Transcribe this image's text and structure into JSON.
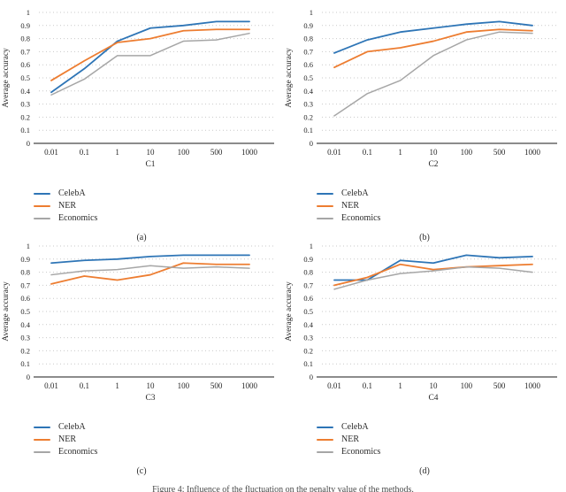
{
  "figure": {
    "caption": "Figure 4: Influence of the fluctuation on the penalty value of the methods."
  },
  "colors": {
    "celeba": "#2E75B6",
    "ner": "#ED7D31",
    "economics": "#A6A6A6",
    "axis": "#8C8C8C",
    "grid": "#C9C9C9",
    "text": "#262626"
  },
  "legend": {
    "entries": [
      "CelebA",
      "NER",
      "Economics"
    ]
  },
  "chart_data": [
    {
      "type": "line",
      "panel": "(a)",
      "xlabel": "C1",
      "ylabel": "Average accuracy",
      "ylim": [
        0,
        1
      ],
      "grid": "horizontal-dotted",
      "legend_position": "below-left",
      "categories": [
        "0.01",
        "0.1",
        "1",
        "10",
        "100",
        "500",
        "1000"
      ],
      "yticks": [
        "0",
        "0.1",
        "0.2",
        "0.3",
        "0.4",
        "0.5",
        "0.6",
        "0.7",
        "0.8",
        "0.9",
        "1"
      ],
      "series": [
        {
          "name": "CelebA",
          "color": "#2E75B6",
          "width": 1.8,
          "values": [
            0.39,
            0.57,
            0.78,
            0.88,
            0.9,
            0.93,
            0.93
          ]
        },
        {
          "name": "NER",
          "color": "#ED7D31",
          "width": 1.8,
          "values": [
            0.48,
            0.63,
            0.77,
            0.8,
            0.86,
            0.87,
            0.87
          ]
        },
        {
          "name": "Economics",
          "color": "#A6A6A6",
          "width": 1.5,
          "values": [
            0.37,
            0.49,
            0.67,
            0.67,
            0.78,
            0.79,
            0.84
          ]
        }
      ]
    },
    {
      "type": "line",
      "panel": "(b)",
      "xlabel": "C2",
      "ylabel": "Average accuracy",
      "ylim": [
        0,
        1
      ],
      "grid": "horizontal-dotted",
      "legend_position": "below-left",
      "categories": [
        "0.01",
        "0.1",
        "1",
        "10",
        "100",
        "500",
        "1000"
      ],
      "yticks": [
        "0",
        "0.1",
        "0.2",
        "0.3",
        "0.4",
        "0.5",
        "0.6",
        "0.7",
        "0.8",
        "0.9",
        "1"
      ],
      "series": [
        {
          "name": "CelebA",
          "color": "#2E75B6",
          "width": 1.8,
          "values": [
            0.69,
            0.79,
            0.85,
            0.88,
            0.91,
            0.93,
            0.9
          ]
        },
        {
          "name": "NER",
          "color": "#ED7D31",
          "width": 1.8,
          "values": [
            0.58,
            0.7,
            0.73,
            0.78,
            0.85,
            0.87,
            0.86
          ]
        },
        {
          "name": "Economics",
          "color": "#A6A6A6",
          "width": 1.5,
          "values": [
            0.21,
            0.38,
            0.48,
            0.67,
            0.79,
            0.85,
            0.84
          ]
        }
      ]
    },
    {
      "type": "line",
      "panel": "(c)",
      "xlabel": "C3",
      "ylabel": "Average accuracy",
      "ylim": [
        0,
        1
      ],
      "grid": "horizontal-dotted",
      "legend_position": "below-left",
      "categories": [
        "0.01",
        "0.1",
        "1",
        "10",
        "100",
        "500",
        "1000"
      ],
      "yticks": [
        "0",
        "0.1",
        "0.2",
        "0.3",
        "0.4",
        "0.5",
        "0.6",
        "0.7",
        "0.8",
        "0.9",
        "1"
      ],
      "series": [
        {
          "name": "CelebA",
          "color": "#2E75B6",
          "width": 1.8,
          "values": [
            0.87,
            0.89,
            0.9,
            0.92,
            0.93,
            0.93,
            0.93
          ]
        },
        {
          "name": "NER",
          "color": "#ED7D31",
          "width": 1.8,
          "values": [
            0.71,
            0.77,
            0.74,
            0.78,
            0.87,
            0.86,
            0.86
          ]
        },
        {
          "name": "Economics",
          "color": "#A6A6A6",
          "width": 1.5,
          "values": [
            0.78,
            0.81,
            0.82,
            0.85,
            0.83,
            0.84,
            0.83
          ]
        }
      ]
    },
    {
      "type": "line",
      "panel": "(d)",
      "xlabel": "C4",
      "ylabel": "Average accuracy",
      "ylim": [
        0,
        1
      ],
      "grid": "horizontal-dotted",
      "legend_position": "below-left",
      "categories": [
        "0.01",
        "0.1",
        "1",
        "10",
        "100",
        "500",
        "1000"
      ],
      "yticks": [
        "0",
        "0.1",
        "0.2",
        "0.3",
        "0.4",
        "0.5",
        "0.6",
        "0.7",
        "0.8",
        "0.9",
        "1"
      ],
      "series": [
        {
          "name": "CelebA",
          "color": "#2E75B6",
          "width": 1.8,
          "values": [
            0.74,
            0.74,
            0.89,
            0.87,
            0.93,
            0.91,
            0.92
          ]
        },
        {
          "name": "NER",
          "color": "#ED7D31",
          "width": 1.8,
          "values": [
            0.7,
            0.76,
            0.86,
            0.82,
            0.84,
            0.85,
            0.86
          ]
        },
        {
          "name": "Economics",
          "color": "#A6A6A6",
          "width": 1.5,
          "values": [
            0.67,
            0.74,
            0.79,
            0.81,
            0.84,
            0.83,
            0.8
          ]
        }
      ]
    }
  ]
}
